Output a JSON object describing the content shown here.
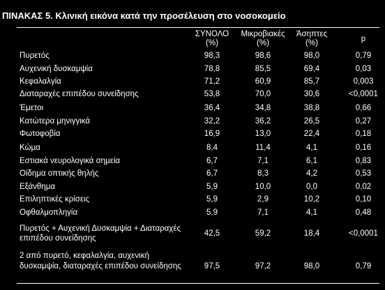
{
  "title": "ΠΙΝΑΚΑΣ 5. Κλινική εικόνα κατά την προσέλευση στο νοσοκομείο",
  "columns": [
    {
      "name": "ΣΥΝΟΛΟ",
      "unit": "(%)"
    },
    {
      "name": "Μικροβιακές",
      "unit": "(%)"
    },
    {
      "name": "Άσηπτες",
      "unit": "(%)"
    },
    {
      "name": "p",
      "unit": ""
    }
  ],
  "rows": [
    {
      "label": "Πυρετός",
      "total": "98,3",
      "bacterial": "98,6",
      "aseptic": "98,0",
      "p": "0,79"
    },
    {
      "label": "Αυχενική δυσκαμψία",
      "total": "78,8",
      "bacterial": "85,5",
      "aseptic": "69,4",
      "p": "0,03"
    },
    {
      "label": "Κεφαλαλγία",
      "total": "71,2",
      "bacterial": "60,9",
      "aseptic": "85,7",
      "p": "0,003"
    },
    {
      "label": "Διαταραχές επιπέδου συνείδησης",
      "total": "53,8",
      "bacterial": "70,0",
      "aseptic": "30,6",
      "p": "<0,0001"
    },
    {
      "label": "Έμετοι",
      "total": "36,4",
      "bacterial": "34,8",
      "aseptic": "38,8",
      "p": "0,66"
    },
    {
      "label": "Κατώτερα μηνιγγικά",
      "total": "32,2",
      "bacterial": "36,2",
      "aseptic": "26,5",
      "p": "0,27"
    },
    {
      "label": "Φωτοφοβία",
      "total": "16,9",
      "bacterial": "13,0",
      "aseptic": "22,4",
      "p": "0,18"
    },
    {
      "label": "Κώμα",
      "total": "8,4",
      "bacterial": "11,4",
      "aseptic": "4,1",
      "p": "0,16"
    },
    {
      "label": "Εστιακά νευρολογικά σημεία",
      "total": "6,7",
      "bacterial": "7,1",
      "aseptic": "6,1",
      "p": "0,83"
    },
    {
      "label": "Οίδημα οπτικής θηλής",
      "total": "6,7",
      "bacterial": "8,3",
      "aseptic": "4,2",
      "p": "0,53"
    },
    {
      "label": "Εξάνθημα",
      "total": "5,9",
      "bacterial": "10,0",
      "aseptic": "0,0",
      "p": "0,02"
    },
    {
      "label": "Επιληπτικές κρίσεις",
      "total": "5,9",
      "bacterial": "2,9",
      "aseptic": "10,2",
      "p": "0,10"
    },
    {
      "label": "Οφθαλμοπληγία",
      "total": "5,9",
      "bacterial": "7,1",
      "aseptic": "4,1",
      "p": "0,48"
    },
    {
      "label": "Πυρετός + Αυχενική Δυσκαμψία + Διαταραχές επιπέδου συνείδησης",
      "total": "42,5",
      "bacterial": "59,2",
      "aseptic": "18,4",
      "p": "<0,0001"
    },
    {
      "label": "2 από πυρετό, κεφαλαλγία, αυχενική δυσκαμψία, διαταραχές επιπέδου συνείδησης",
      "total": "97,5",
      "bacterial": "97,2",
      "aseptic": "98,0",
      "p": "0,79"
    }
  ]
}
